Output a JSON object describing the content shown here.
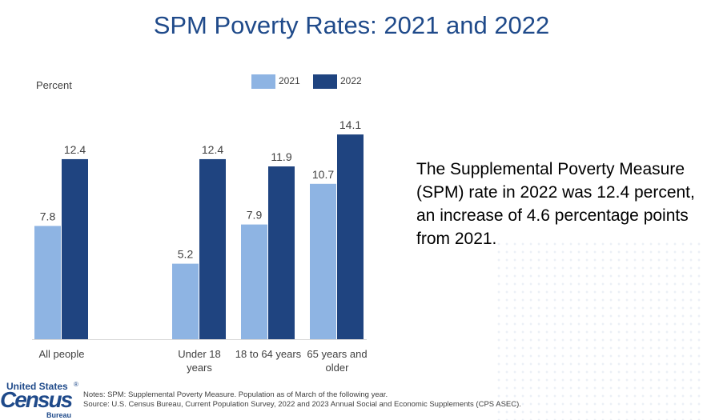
{
  "title": "SPM Poverty Rates: 2021 and 2022",
  "chart_data": {
    "type": "bar",
    "title": "SPM Poverty Rates: 2021 and 2022",
    "ylabel": "Percent",
    "xlabel": "",
    "ylim": [
      0,
      16
    ],
    "grid": false,
    "legend_position": "top",
    "categories": [
      "All people",
      "Under 18 years",
      "18 to 64 years",
      "65 years and older"
    ],
    "category_lines": [
      [
        "All people"
      ],
      [
        "Under 18",
        "years"
      ],
      [
        "18 to 64 years"
      ],
      [
        "65 years and",
        "older"
      ]
    ],
    "series": [
      {
        "name": "2021",
        "color": "#8eb4e3",
        "values": [
          7.8,
          5.2,
          7.9,
          10.7
        ],
        "labels": [
          "7.8",
          "5.2",
          "7.9",
          "10.7"
        ]
      },
      {
        "name": "2022",
        "color": "#1f4480",
        "values": [
          12.4,
          12.4,
          11.9,
          14.1
        ],
        "labels": [
          "12.4",
          "12.4",
          "11.9",
          "14.1"
        ]
      }
    ]
  },
  "side_text": "The Supplemental Poverty Measure (SPM) rate in 2022 was 12.4 percent, an increase of 4.6 percentage points from 2021.",
  "logo": {
    "united_states": "United States",
    "registered": "®",
    "census": "Census",
    "bureau": "Bureau"
  },
  "notes": {
    "line1": "Notes: SPM: Supplemental Poverty Measure. Population as of March of the following year.",
    "line2": "Source: U.S. Census Bureau, Current Population Survey, 2022 and 2023 Annual Social and Economic Supplements (CPS ASEC)."
  }
}
